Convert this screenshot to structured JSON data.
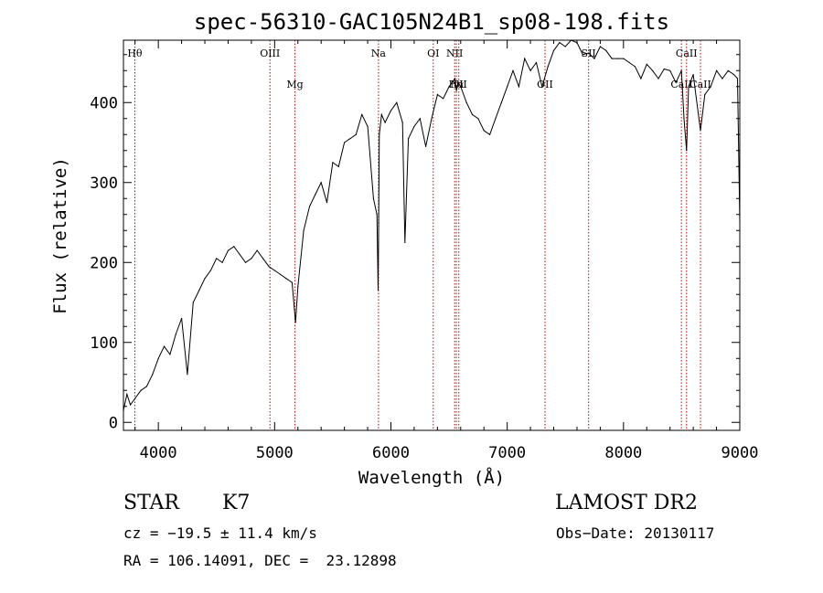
{
  "chart_data": {
    "type": "line",
    "title": "spec-56310-GAC105N24B1_sp08-198.fits",
    "xlabel": "Wavelength (Å)",
    "ylabel": "Flux (relative)",
    "xlim": [
      3700,
      9000
    ],
    "ylim": [
      -10,
      478
    ],
    "xticks": [
      4000,
      5000,
      6000,
      7000,
      8000,
      9000
    ],
    "yticks": [
      0,
      100,
      200,
      300,
      400
    ],
    "series": [
      {
        "x": [
          3700,
          3730,
          3760,
          3800,
          3850,
          3900,
          3950,
          4000,
          4050,
          4100,
          4150,
          4200,
          4250,
          4300,
          4350,
          4400,
          4450,
          4500,
          4550,
          4600,
          4650,
          4700,
          4750,
          4800,
          4850,
          4900,
          4950,
          5000,
          5050,
          5100,
          5150,
          5180,
          5200,
          5250,
          5300,
          5350,
          5400,
          5450,
          5500,
          5550,
          5600,
          5650,
          5700,
          5750,
          5800,
          5850,
          5880,
          5890,
          5895,
          5900,
          5920,
          5950,
          6000,
          6050,
          6100,
          6120,
          6150,
          6200,
          6250,
          6300,
          6350,
          6400,
          6450,
          6500,
          6550,
          6563,
          6580,
          6600,
          6650,
          6700,
          6750,
          6800,
          6850,
          6900,
          6950,
          7000,
          7050,
          7100,
          7150,
          7200,
          7250,
          7300,
          7350,
          7400,
          7450,
          7500,
          7550,
          7600,
          7650,
          7700,
          7750,
          7800,
          7850,
          7900,
          7950,
          8000,
          8050,
          8100,
          8150,
          8200,
          8250,
          8300,
          8350,
          8400,
          8450,
          8498,
          8520,
          8542,
          8560,
          8600,
          8662,
          8700,
          8750,
          8800,
          8850,
          8900,
          8950,
          8980,
          9000
        ],
        "y": [
          15,
          35,
          22,
          30,
          40,
          45,
          60,
          80,
          95,
          85,
          110,
          130,
          60,
          150,
          165,
          180,
          190,
          205,
          200,
          215,
          220,
          210,
          200,
          205,
          215,
          205,
          195,
          190,
          185,
          180,
          175,
          125,
          170,
          240,
          270,
          285,
          300,
          275,
          325,
          320,
          350,
          355,
          360,
          385,
          370,
          280,
          260,
          165,
          250,
          360,
          385,
          375,
          390,
          400,
          375,
          225,
          355,
          370,
          380,
          345,
          380,
          410,
          405,
          420,
          430,
          415,
          425,
          420,
          400,
          385,
          380,
          365,
          360,
          380,
          400,
          420,
          440,
          420,
          455,
          440,
          450,
          420,
          445,
          465,
          475,
          470,
          478,
          475,
          460,
          462,
          455,
          470,
          465,
          455,
          455,
          455,
          450,
          445,
          430,
          448,
          440,
          430,
          442,
          440,
          425,
          440,
          380,
          340,
          420,
          435,
          365,
          410,
          420,
          440,
          430,
          440,
          435,
          430,
          250
        ]
      }
    ],
    "spectral_lines": [
      {
        "label": "Hθ",
        "wavelength": 3798,
        "position": "top"
      },
      {
        "label": "OIII",
        "wavelength": 4960,
        "position": "top"
      },
      {
        "label": "Mg",
        "wavelength": 5175,
        "position": "bottom"
      },
      {
        "label": "Na",
        "wavelength": 5893,
        "position": "top"
      },
      {
        "label": "OI",
        "wavelength": 6364,
        "position": "top"
      },
      {
        "label": "NII",
        "wavelength": 6548,
        "position": "top"
      },
      {
        "label": "Hα",
        "wavelength": 6563,
        "position": "bottom"
      },
      {
        "label": "NII",
        "wavelength": 6584,
        "position": "bottom"
      },
      {
        "label": "OII",
        "wavelength": 7325,
        "position": "bottom"
      },
      {
        "label": "SII",
        "wavelength": 7700,
        "position": "top"
      },
      {
        "label": "CaII",
        "wavelength": 8498,
        "position": "bottom"
      },
      {
        "label": "CaII",
        "wavelength": 8542,
        "position": "top"
      },
      {
        "label": "CaII",
        "wavelength": 8662,
        "position": "bottom"
      }
    ],
    "grid": false,
    "line_color": "#000000",
    "marker_color": "#cc0000"
  },
  "info": {
    "class": "STAR",
    "subclass": "K7",
    "survey": "LAMOST DR2",
    "cz": "cz = −19.5 ± 11.4 km/s",
    "obs_date": "Obs−Date: 20130117",
    "coords": "RA = 106.14091, DEC =  23.12898"
  }
}
